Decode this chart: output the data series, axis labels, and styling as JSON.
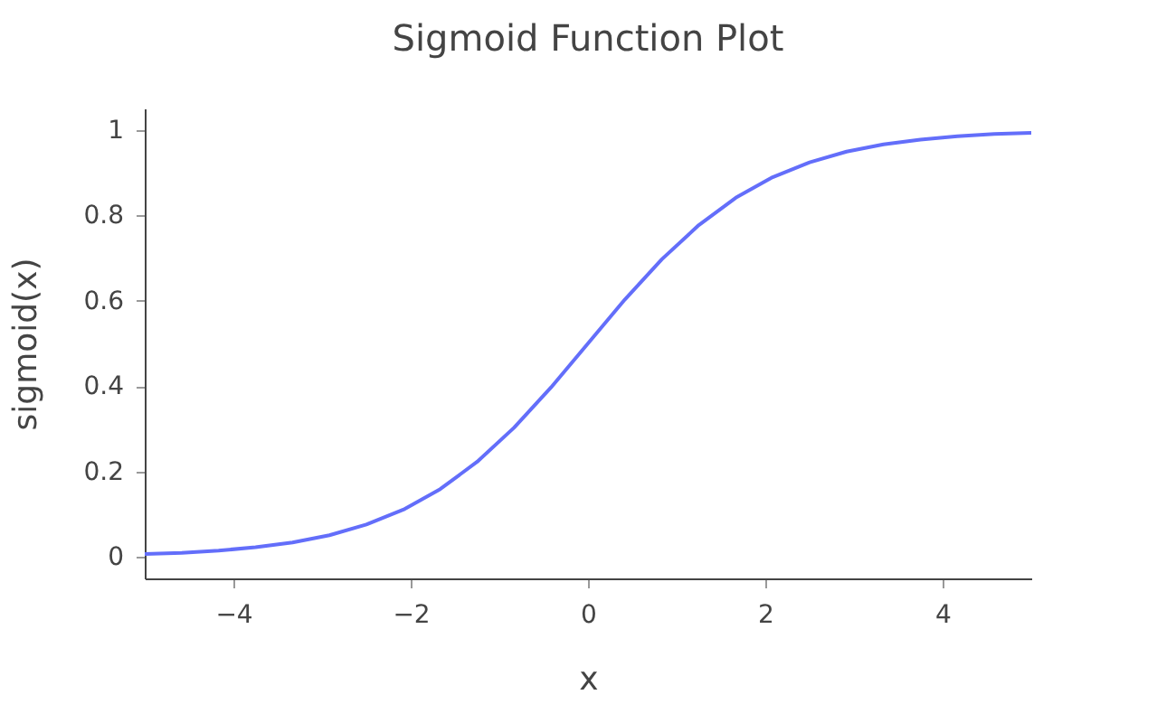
{
  "chart_data": {
    "type": "line",
    "title": "Sigmoid Function Plot",
    "xlabel": "x",
    "ylabel": "sigmoid(x)",
    "x": [
      -5,
      -4.583,
      -4.167,
      -3.75,
      -3.333,
      -2.917,
      -2.5,
      -2.083,
      -1.667,
      -1.25,
      -0.833,
      -0.417,
      0,
      0.417,
      0.833,
      1.25,
      1.667,
      2.083,
      2.5,
      2.917,
      3.333,
      3.75,
      4.167,
      4.583,
      5
    ],
    "series": [
      {
        "color": "#636efa",
        "values": [
          0.007,
          0.01,
          0.015,
          0.023,
          0.034,
          0.051,
          0.076,
          0.111,
          0.159,
          0.223,
          0.303,
          0.397,
          0.5,
          0.603,
          0.697,
          0.777,
          0.841,
          0.889,
          0.924,
          0.949,
          0.966,
          0.977,
          0.985,
          0.99,
          0.993
        ]
      }
    ],
    "xlim": [
      -5,
      5
    ],
    "ylim": [
      -0.05,
      1.05
    ],
    "xticks": [
      {
        "value": -4,
        "label": "−4"
      },
      {
        "value": -2,
        "label": "−2"
      },
      0,
      2,
      4
    ],
    "yticks": [
      0,
      0.2,
      0.4,
      0.6,
      0.8,
      1
    ]
  }
}
